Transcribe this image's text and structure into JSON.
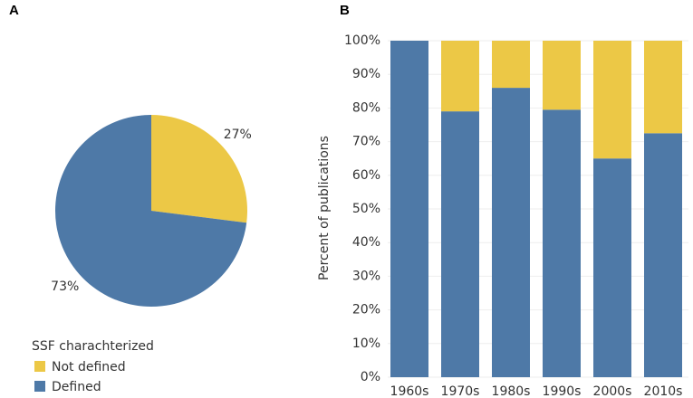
{
  "chart_data": [
    {
      "type": "pie",
      "panel": "A",
      "categories": [
        "Not defined",
        "Defined"
      ],
      "values": [
        27,
        73
      ],
      "value_labels": [
        "27%",
        "73%"
      ],
      "colors": [
        "#ecc846",
        "#4e79a7"
      ],
      "legend_title": "SSF charachterized"
    },
    {
      "type": "bar",
      "panel": "B",
      "stacked": true,
      "ylabel": "Percent of publications",
      "categories": [
        "1960s",
        "1970s",
        "1980s",
        "1990s",
        "2000s",
        "2010s"
      ],
      "series": [
        {
          "name": "Defined",
          "color": "#4e79a7",
          "values": [
            100,
            79,
            86,
            79.5,
            65,
            72.5
          ]
        },
        {
          "name": "Not defined",
          "color": "#ecc846",
          "values": [
            0,
            21,
            14,
            20.5,
            35,
            27.5
          ]
        }
      ],
      "ylim": [
        0,
        100
      ],
      "yticks": [
        {
          "value": 0,
          "label": "0%"
        },
        {
          "value": 10,
          "label": "10%"
        },
        {
          "value": 20,
          "label": "20%"
        },
        {
          "value": 30,
          "label": "30%"
        },
        {
          "value": 40,
          "label": "40%"
        },
        {
          "value": 50,
          "label": "50%"
        },
        {
          "value": 60,
          "label": "60%"
        },
        {
          "value": 70,
          "label": "70%"
        },
        {
          "value": 80,
          "label": "80%"
        },
        {
          "value": 90,
          "label": "90%"
        },
        {
          "value": 100,
          "label": "100%"
        }
      ],
      "grid": true
    }
  ]
}
